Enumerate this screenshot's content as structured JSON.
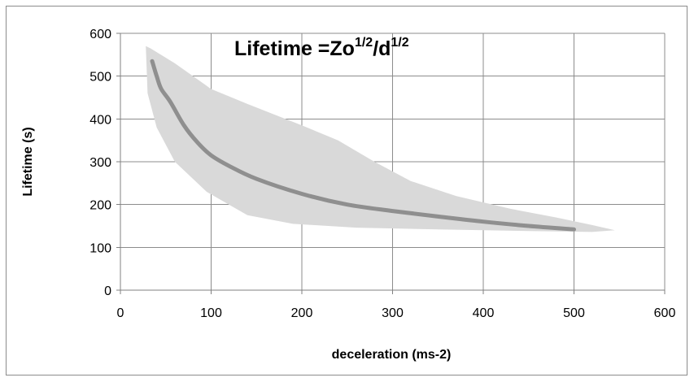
{
  "chart_data": {
    "type": "line",
    "title": {
      "prefix": "Lifetime =Zo",
      "exp1": "1/2",
      "mid": "/d",
      "exp2": "1/2"
    },
    "xlabel": "deceleration (ms-2)",
    "ylabel": "Lifetime (s)",
    "xlim": [
      0,
      600
    ],
    "ylim": [
      0,
      600
    ],
    "xticks": [
      0,
      100,
      200,
      300,
      400,
      500,
      600
    ],
    "yticks": [
      0,
      100,
      200,
      300,
      400,
      500,
      600
    ],
    "grid": true,
    "series": [
      {
        "color": "#8f8f8f",
        "points": [
          [
            35,
            535
          ],
          [
            40,
            500
          ],
          [
            45,
            470
          ],
          [
            55,
            440
          ],
          [
            70,
            385
          ],
          [
            85,
            345
          ],
          [
            100,
            315
          ],
          [
            120,
            290
          ],
          [
            150,
            260
          ],
          [
            200,
            225
          ],
          [
            250,
            200
          ],
          [
            300,
            185
          ],
          [
            350,
            172
          ],
          [
            400,
            160
          ],
          [
            450,
            150
          ],
          [
            500,
            142
          ]
        ]
      }
    ],
    "band": {
      "color": "#d9d9d9",
      "upper": [
        [
          28,
          570
        ],
        [
          33,
          565
        ],
        [
          60,
          530
        ],
        [
          100,
          470
        ],
        [
          140,
          435
        ],
        [
          200,
          385
        ],
        [
          240,
          350
        ],
        [
          280,
          300
        ],
        [
          320,
          255
        ],
        [
          370,
          220
        ],
        [
          430,
          190
        ],
        [
          480,
          170
        ],
        [
          520,
          152
        ],
        [
          545,
          140
        ]
      ],
      "lower": [
        [
          545,
          140
        ],
        [
          520,
          136
        ],
        [
          450,
          138
        ],
        [
          350,
          142
        ],
        [
          260,
          146
        ],
        [
          190,
          155
        ],
        [
          140,
          175
        ],
        [
          95,
          230
        ],
        [
          60,
          300
        ],
        [
          40,
          380
        ],
        [
          30,
          460
        ],
        [
          28,
          570
        ]
      ]
    }
  }
}
